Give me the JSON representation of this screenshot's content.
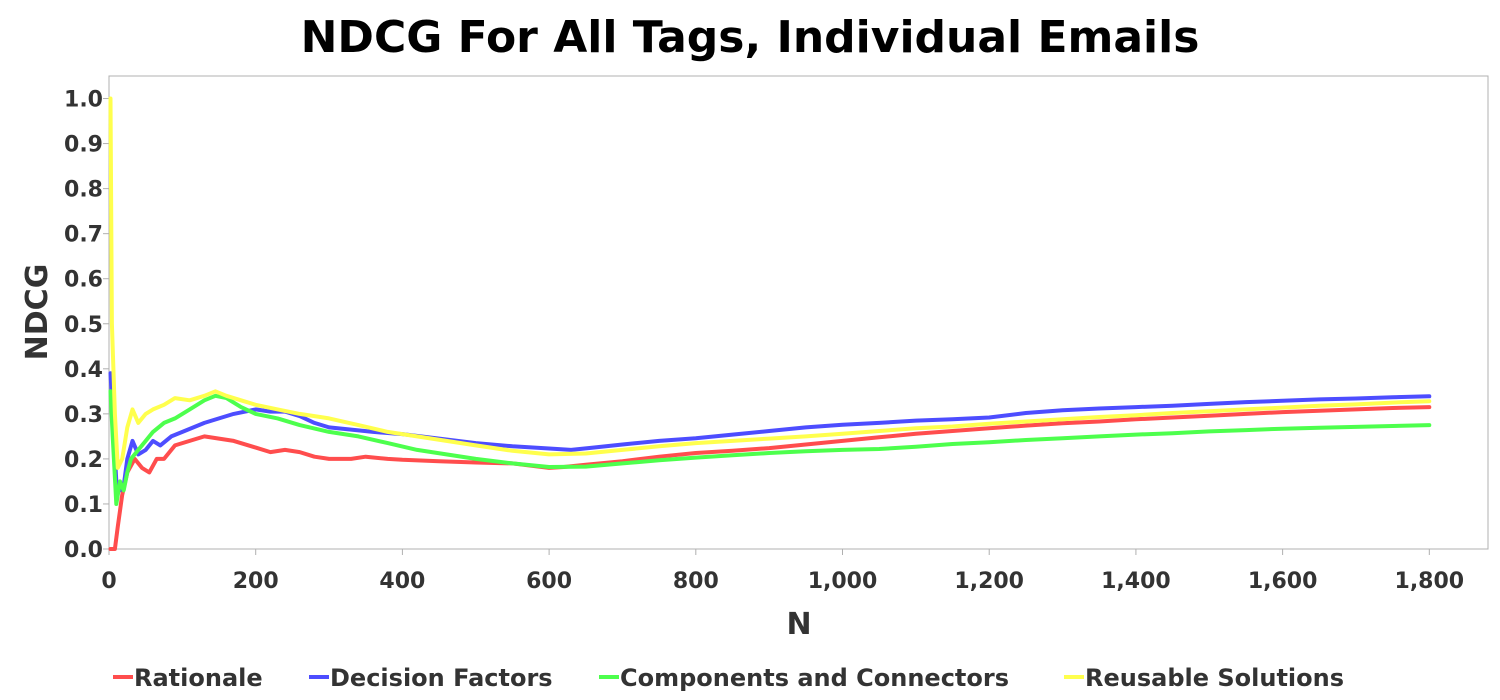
{
  "chart_data": {
    "type": "line",
    "title": "NDCG For All Tags, Individual Emails",
    "xlabel": "N",
    "ylabel": "NDCG",
    "xlim": [
      0,
      1880
    ],
    "ylim": [
      0,
      1.05
    ],
    "x_ticks": [
      "0",
      "200",
      "400",
      "600",
      "800",
      "1,000",
      "1,200",
      "1,400",
      "1,600",
      "1,800"
    ],
    "x_tick_values": [
      0,
      200,
      400,
      600,
      800,
      1000,
      1200,
      1400,
      1600,
      1800
    ],
    "y_ticks": [
      "0.0",
      "0.1",
      "0.2",
      "0.3",
      "0.4",
      "0.5",
      "0.6",
      "0.7",
      "0.8",
      "0.9",
      "1.0"
    ],
    "y_tick_values": [
      0,
      0.1,
      0.2,
      0.3,
      0.4,
      0.5,
      0.6,
      0.7,
      0.8,
      0.9,
      1.0
    ],
    "grid": false,
    "legend_position": "bottom",
    "series": [
      {
        "name": "Rationale",
        "color": "#ff4d4d",
        "points": [
          [
            2,
            0.0
          ],
          [
            8,
            0.0
          ],
          [
            12,
            0.05
          ],
          [
            18,
            0.12
          ],
          [
            25,
            0.17
          ],
          [
            35,
            0.2
          ],
          [
            45,
            0.18
          ],
          [
            55,
            0.17
          ],
          [
            65,
            0.2
          ],
          [
            75,
            0.2
          ],
          [
            90,
            0.23
          ],
          [
            110,
            0.24
          ],
          [
            130,
            0.25
          ],
          [
            150,
            0.245
          ],
          [
            170,
            0.24
          ],
          [
            200,
            0.225
          ],
          [
            220,
            0.215
          ],
          [
            240,
            0.22
          ],
          [
            260,
            0.215
          ],
          [
            280,
            0.205
          ],
          [
            300,
            0.2
          ],
          [
            330,
            0.2
          ],
          [
            350,
            0.205
          ],
          [
            380,
            0.2
          ],
          [
            400,
            0.198
          ],
          [
            450,
            0.195
          ],
          [
            500,
            0.192
          ],
          [
            550,
            0.19
          ],
          [
            600,
            0.18
          ],
          [
            620,
            0.182
          ],
          [
            650,
            0.187
          ],
          [
            700,
            0.195
          ],
          [
            750,
            0.205
          ],
          [
            800,
            0.213
          ],
          [
            850,
            0.218
          ],
          [
            900,
            0.224
          ],
          [
            950,
            0.232
          ],
          [
            1000,
            0.24
          ],
          [
            1050,
            0.248
          ],
          [
            1100,
            0.256
          ],
          [
            1150,
            0.262
          ],
          [
            1200,
            0.268
          ],
          [
            1250,
            0.274
          ],
          [
            1300,
            0.279
          ],
          [
            1350,
            0.283
          ],
          [
            1400,
            0.288
          ],
          [
            1450,
            0.292
          ],
          [
            1500,
            0.296
          ],
          [
            1550,
            0.3
          ],
          [
            1600,
            0.304
          ],
          [
            1650,
            0.307
          ],
          [
            1700,
            0.31
          ],
          [
            1750,
            0.313
          ],
          [
            1800,
            0.315
          ]
        ]
      },
      {
        "name": "Decision Factors",
        "color": "#4d4dff",
        "points": [
          [
            2,
            0.39
          ],
          [
            5,
            0.3
          ],
          [
            10,
            0.15
          ],
          [
            15,
            0.13
          ],
          [
            20,
            0.14
          ],
          [
            25,
            0.2
          ],
          [
            32,
            0.24
          ],
          [
            40,
            0.21
          ],
          [
            50,
            0.22
          ],
          [
            60,
            0.24
          ],
          [
            70,
            0.23
          ],
          [
            85,
            0.25
          ],
          [
            100,
            0.26
          ],
          [
            115,
            0.27
          ],
          [
            130,
            0.28
          ],
          [
            150,
            0.29
          ],
          [
            170,
            0.3
          ],
          [
            200,
            0.31
          ],
          [
            220,
            0.305
          ],
          [
            240,
            0.305
          ],
          [
            260,
            0.295
          ],
          [
            280,
            0.28
          ],
          [
            300,
            0.27
          ],
          [
            330,
            0.265
          ],
          [
            360,
            0.26
          ],
          [
            400,
            0.255
          ],
          [
            450,
            0.245
          ],
          [
            500,
            0.235
          ],
          [
            550,
            0.228
          ],
          [
            600,
            0.223
          ],
          [
            630,
            0.22
          ],
          [
            660,
            0.225
          ],
          [
            700,
            0.232
          ],
          [
            750,
            0.24
          ],
          [
            800,
            0.246
          ],
          [
            850,
            0.254
          ],
          [
            900,
            0.262
          ],
          [
            950,
            0.27
          ],
          [
            1000,
            0.276
          ],
          [
            1050,
            0.28
          ],
          [
            1100,
            0.285
          ],
          [
            1150,
            0.288
          ],
          [
            1200,
            0.292
          ],
          [
            1250,
            0.302
          ],
          [
            1300,
            0.308
          ],
          [
            1350,
            0.312
          ],
          [
            1400,
            0.315
          ],
          [
            1450,
            0.318
          ],
          [
            1500,
            0.322
          ],
          [
            1550,
            0.326
          ],
          [
            1600,
            0.329
          ],
          [
            1650,
            0.332
          ],
          [
            1700,
            0.334
          ],
          [
            1750,
            0.337
          ],
          [
            1800,
            0.339
          ]
        ]
      },
      {
        "name": "Components and Connectors",
        "color": "#4dff4d",
        "points": [
          [
            2,
            0.35
          ],
          [
            5,
            0.25
          ],
          [
            10,
            0.1
          ],
          [
            15,
            0.15
          ],
          [
            20,
            0.13
          ],
          [
            25,
            0.17
          ],
          [
            30,
            0.2
          ],
          [
            40,
            0.22
          ],
          [
            50,
            0.24
          ],
          [
            60,
            0.26
          ],
          [
            75,
            0.28
          ],
          [
            90,
            0.29
          ],
          [
            110,
            0.31
          ],
          [
            130,
            0.33
          ],
          [
            145,
            0.34
          ],
          [
            160,
            0.335
          ],
          [
            180,
            0.315
          ],
          [
            200,
            0.3
          ],
          [
            230,
            0.29
          ],
          [
            260,
            0.275
          ],
          [
            300,
            0.26
          ],
          [
            340,
            0.25
          ],
          [
            380,
            0.235
          ],
          [
            420,
            0.22
          ],
          [
            460,
            0.21
          ],
          [
            500,
            0.2
          ],
          [
            550,
            0.19
          ],
          [
            600,
            0.182
          ],
          [
            650,
            0.183
          ],
          [
            700,
            0.19
          ],
          [
            750,
            0.197
          ],
          [
            800,
            0.203
          ],
          [
            850,
            0.208
          ],
          [
            900,
            0.213
          ],
          [
            950,
            0.217
          ],
          [
            1000,
            0.22
          ],
          [
            1050,
            0.222
          ],
          [
            1100,
            0.227
          ],
          [
            1150,
            0.233
          ],
          [
            1200,
            0.237
          ],
          [
            1250,
            0.242
          ],
          [
            1300,
            0.246
          ],
          [
            1350,
            0.25
          ],
          [
            1400,
            0.254
          ],
          [
            1450,
            0.257
          ],
          [
            1500,
            0.261
          ],
          [
            1550,
            0.264
          ],
          [
            1600,
            0.267
          ],
          [
            1650,
            0.269
          ],
          [
            1700,
            0.271
          ],
          [
            1750,
            0.273
          ],
          [
            1800,
            0.275
          ]
        ]
      },
      {
        "name": "Reusable Solutions",
        "color": "#ffff4d",
        "points": [
          [
            2,
            1.0
          ],
          [
            4,
            0.5
          ],
          [
            8,
            0.3
          ],
          [
            12,
            0.18
          ],
          [
            18,
            0.2
          ],
          [
            25,
            0.27
          ],
          [
            32,
            0.31
          ],
          [
            40,
            0.28
          ],
          [
            50,
            0.3
          ],
          [
            60,
            0.31
          ],
          [
            75,
            0.32
          ],
          [
            90,
            0.335
          ],
          [
            110,
            0.33
          ],
          [
            130,
            0.34
          ],
          [
            145,
            0.35
          ],
          [
            160,
            0.34
          ],
          [
            180,
            0.33
          ],
          [
            200,
            0.32
          ],
          [
            230,
            0.31
          ],
          [
            260,
            0.3
          ],
          [
            300,
            0.29
          ],
          [
            340,
            0.275
          ],
          [
            380,
            0.26
          ],
          [
            420,
            0.25
          ],
          [
            460,
            0.24
          ],
          [
            500,
            0.23
          ],
          [
            550,
            0.218
          ],
          [
            600,
            0.21
          ],
          [
            650,
            0.212
          ],
          [
            700,
            0.22
          ],
          [
            750,
            0.228
          ],
          [
            800,
            0.235
          ],
          [
            850,
            0.24
          ],
          [
            900,
            0.245
          ],
          [
            950,
            0.25
          ],
          [
            1000,
            0.256
          ],
          [
            1050,
            0.262
          ],
          [
            1100,
            0.268
          ],
          [
            1150,
            0.272
          ],
          [
            1200,
            0.278
          ],
          [
            1250,
            0.283
          ],
          [
            1300,
            0.288
          ],
          [
            1350,
            0.293
          ],
          [
            1400,
            0.297
          ],
          [
            1450,
            0.302
          ],
          [
            1500,
            0.306
          ],
          [
            1550,
            0.31
          ],
          [
            1600,
            0.314
          ],
          [
            1650,
            0.318
          ],
          [
            1700,
            0.321
          ],
          [
            1750,
            0.325
          ],
          [
            1800,
            0.328
          ]
        ]
      }
    ]
  }
}
